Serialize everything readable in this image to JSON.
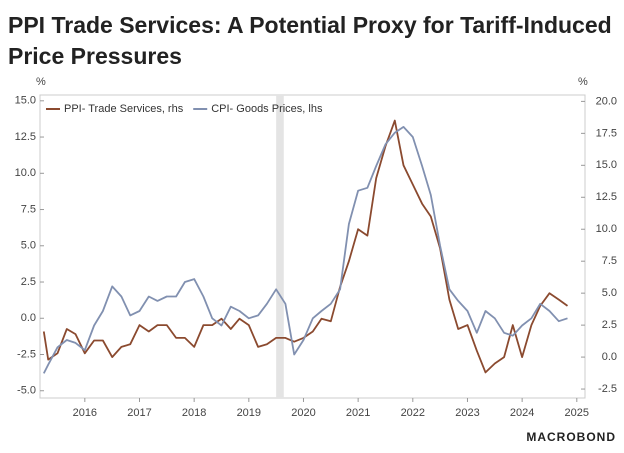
{
  "chart_data": {
    "type": "line",
    "title": "PPI Trade Services: A Potential Proxy for Tariff-Induced",
    "subtitle": "Price Pressures",
    "y_unit": "%",
    "y2_unit": "%",
    "source": "MACROBOND",
    "x": [
      2015.75,
      2015.83,
      2016.0,
      2016.17,
      2016.33,
      2016.5,
      2016.67,
      2016.83,
      2017.0,
      2017.17,
      2017.33,
      2017.5,
      2017.67,
      2017.83,
      2018.0,
      2018.17,
      2018.33,
      2018.5,
      2018.67,
      2018.83,
      2019.0,
      2019.17,
      2019.33,
      2019.5,
      2019.67,
      2019.83,
      2020.0,
      2020.17,
      2020.33,
      2020.5,
      2020.67,
      2020.83,
      2021.0,
      2021.17,
      2021.33,
      2021.5,
      2021.67,
      2021.83,
      2022.0,
      2022.17,
      2022.33,
      2022.5,
      2022.67,
      2022.83,
      2023.0,
      2023.17,
      2023.33,
      2023.5,
      2023.67,
      2023.83,
      2024.0,
      2024.17,
      2024.33,
      2024.5,
      2024.67,
      2024.83,
      2025.0,
      2025.17,
      2025.33
    ],
    "series": [
      {
        "name": "PPI- Trade Services, rhs",
        "color": "#8b4a2f",
        "axis": "y2",
        "values": [
          2.0,
          -0.2,
          0.3,
          2.2,
          1.8,
          0.3,
          1.3,
          1.3,
          0.0,
          0.8,
          1.0,
          2.5,
          2.0,
          2.5,
          2.5,
          1.5,
          1.5,
          0.8,
          2.5,
          2.5,
          3.0,
          2.2,
          3.0,
          2.5,
          0.8,
          1.0,
          1.5,
          1.5,
          1.2,
          1.5,
          2.0,
          3.0,
          2.8,
          5.5,
          7.5,
          10.0,
          9.5,
          14.0,
          16.5,
          18.5,
          15.0,
          13.5,
          12.0,
          11.0,
          8.5,
          4.5,
          2.2,
          2.5,
          0.5,
          -1.2,
          -0.5,
          0.0,
          2.5,
          0.0,
          2.5,
          4.0,
          5.0,
          4.5,
          4.0
        ]
      },
      {
        "name": "CPI- Goods Prices, lhs",
        "color": "#8190b0",
        "values": [
          -3.8,
          -3.2,
          -2.0,
          -1.5,
          -1.7,
          -2.2,
          -0.5,
          0.5,
          2.2,
          1.5,
          0.2,
          0.5,
          1.5,
          1.2,
          1.5,
          1.5,
          2.5,
          2.7,
          1.5,
          0.0,
          -0.5,
          0.8,
          0.5,
          0.0,
          0.2,
          1.0,
          2.0,
          1.0,
          -2.5,
          -1.5,
          0.0,
          0.5,
          1.0,
          2.0,
          6.5,
          8.8,
          9.0,
          10.5,
          12.0,
          12.8,
          13.2,
          12.5,
          10.5,
          8.5,
          5.0,
          2.0,
          1.2,
          0.5,
          -1.0,
          0.5,
          0.0,
          -1.0,
          -1.2,
          -0.5,
          0.0,
          1.0,
          0.5,
          -0.2,
          0.0
        ]
      }
    ],
    "shaded_region": [
      2020.0,
      2020.14
    ],
    "xlim": [
      2015.68,
      2025.65
    ],
    "xticks": [
      {
        "value": 2016.5,
        "label": "2016"
      },
      {
        "value": 2017.5,
        "label": "2017"
      },
      {
        "value": 2018.5,
        "label": "2018"
      },
      {
        "value": 2019.5,
        "label": "2019"
      },
      {
        "value": 2020.5,
        "label": "2020"
      },
      {
        "value": 2021.5,
        "label": "2021"
      },
      {
        "value": 2022.5,
        "label": "2022"
      },
      {
        "value": 2023.5,
        "label": "2023"
      },
      {
        "value": 2024.5,
        "label": "2024"
      },
      {
        "value": 2025.5,
        "label": "2025"
      }
    ],
    "ylim": [
      -5.5,
      15.4
    ],
    "yticks": [
      {
        "value": -5,
        "label": "-5.0"
      },
      {
        "value": -2.5,
        "label": "-2.5"
      },
      {
        "value": 0,
        "label": "0.0"
      },
      {
        "value": 2.5,
        "label": "2.5"
      },
      {
        "value": 5,
        "label": "5.0"
      },
      {
        "value": 7.5,
        "label": "7.5"
      },
      {
        "value": 10,
        "label": "10.0"
      },
      {
        "value": 12.5,
        "label": "12.5"
      },
      {
        "value": 15,
        "label": "15.0"
      }
    ],
    "y2lim": [
      -3.2,
      20.5
    ],
    "y2ticks": [
      {
        "value": -2.5,
        "label": "-2.5"
      },
      {
        "value": 0,
        "label": "0.0"
      },
      {
        "value": 2.5,
        "label": "2.5"
      },
      {
        "value": 5,
        "label": "5.0"
      },
      {
        "value": 7.5,
        "label": "7.5"
      },
      {
        "value": 10,
        "label": "10.0"
      },
      {
        "value": 12.5,
        "label": "12.5"
      },
      {
        "value": 15,
        "label": "15.0"
      },
      {
        "value": 17.5,
        "label": "17.5"
      },
      {
        "value": 20,
        "label": "20.0"
      }
    ],
    "legend": "top-left"
  }
}
